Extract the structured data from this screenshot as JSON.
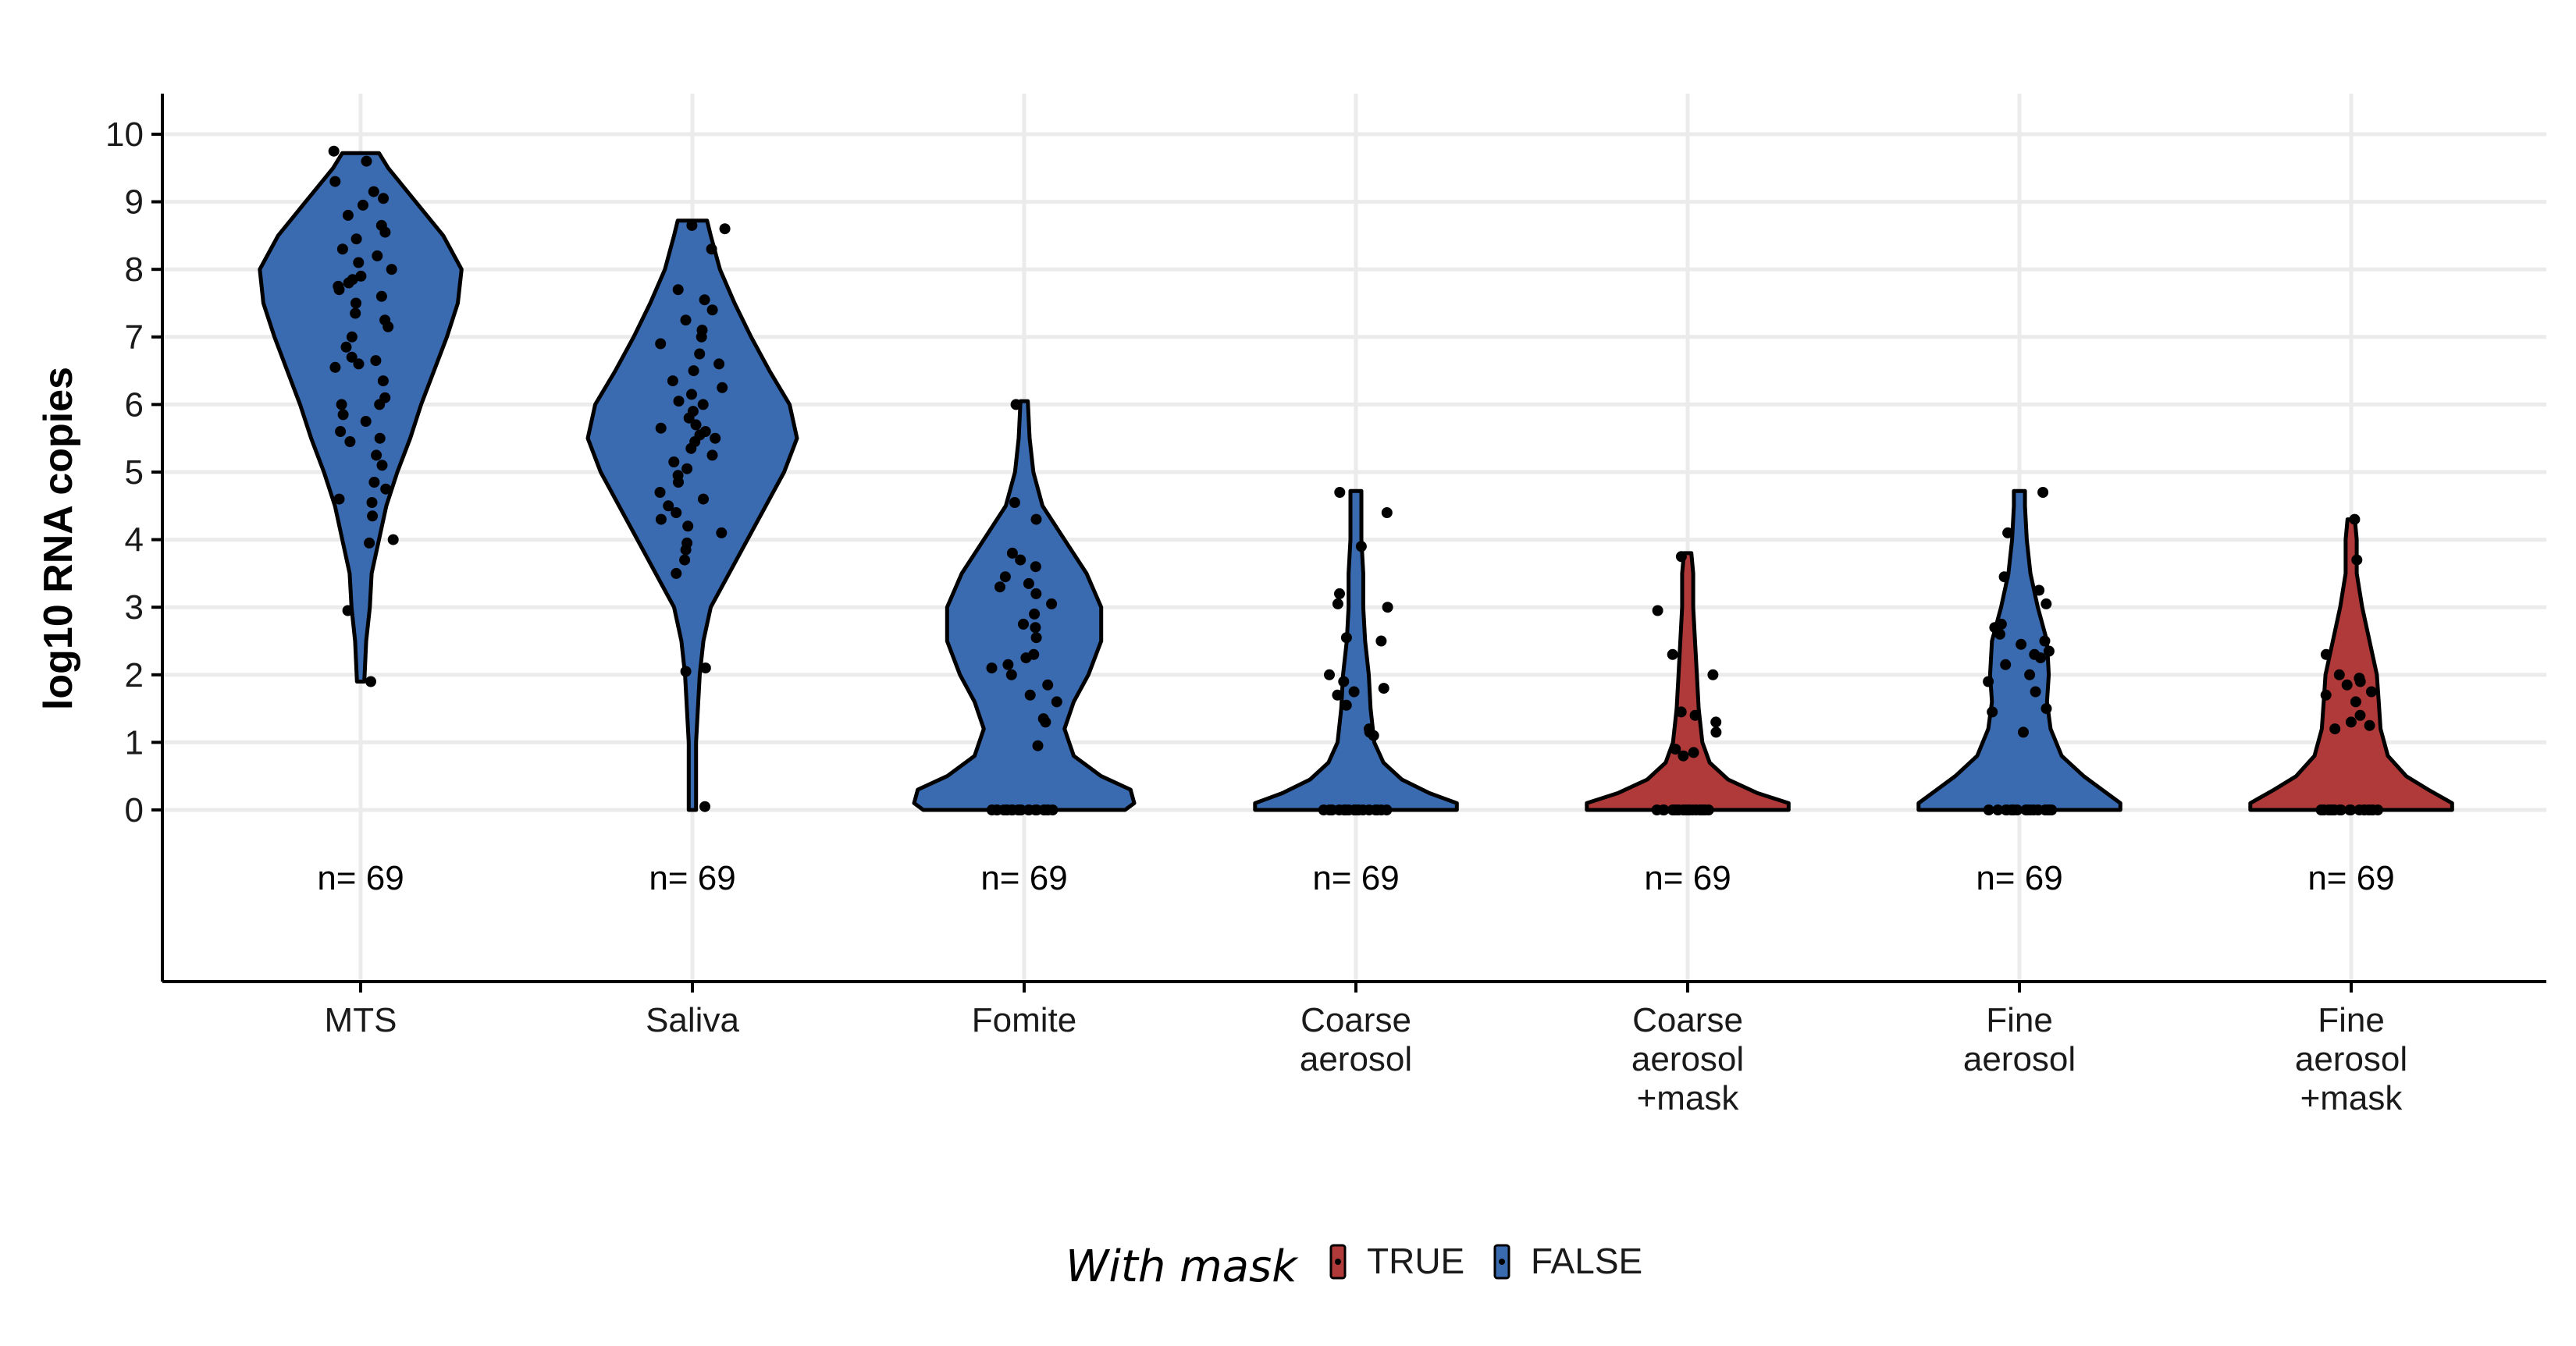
{
  "chart_data": {
    "type": "violin",
    "ylabel": "log10 RNA copies",
    "xlabel": "",
    "ylim": [
      0,
      10
    ],
    "y_ticks": [
      "0",
      "1",
      "2",
      "3",
      "4",
      "5",
      "6",
      "7",
      "8",
      "9",
      "10"
    ],
    "grid": true,
    "legend": {
      "title": "With mask",
      "position": "bottom",
      "entries": [
        {
          "label": "TRUE",
          "color": "#B03A3A"
        },
        {
          "label": "FALSE",
          "color": "#3A6BB0"
        }
      ]
    },
    "categories": [
      {
        "label_lines": [
          "MTS"
        ],
        "with_mask": "FALSE",
        "n_label": "n= 69",
        "profile": [
          [
            1.9,
            0.02
          ],
          [
            2.5,
            0.03
          ],
          [
            3.0,
            0.05
          ],
          [
            3.5,
            0.06
          ],
          [
            4.0,
            0.1
          ],
          [
            4.5,
            0.14
          ],
          [
            5.0,
            0.2
          ],
          [
            5.5,
            0.27
          ],
          [
            6.0,
            0.33
          ],
          [
            6.5,
            0.4
          ],
          [
            7.0,
            0.47
          ],
          [
            7.5,
            0.53
          ],
          [
            8.0,
            0.55
          ],
          [
            8.5,
            0.45
          ],
          [
            9.0,
            0.3
          ],
          [
            9.5,
            0.15
          ],
          [
            9.72,
            0.1
          ]
        ],
        "points": [
          1.9,
          2.95,
          3.95,
          4.0,
          4.35,
          4.55,
          4.6,
          4.75,
          4.85,
          5.1,
          5.25,
          5.45,
          5.5,
          5.6,
          5.75,
          5.85,
          6.0,
          6.0,
          6.1,
          6.35,
          6.55,
          6.6,
          6.65,
          6.7,
          6.85,
          7.0,
          7.15,
          7.25,
          7.35,
          7.5,
          7.6,
          7.7,
          7.75,
          7.8,
          7.85,
          7.9,
          8.0,
          8.1,
          8.2,
          8.3,
          8.45,
          8.55,
          8.65,
          8.8,
          8.95,
          9.05,
          9.15,
          9.3,
          9.6,
          9.75
        ]
      },
      {
        "label_lines": [
          "Saliva"
        ],
        "with_mask": "FALSE",
        "n_label": "n= 69",
        "profile": [
          [
            0.0,
            0.02
          ],
          [
            1.0,
            0.02
          ],
          [
            2.0,
            0.04
          ],
          [
            2.5,
            0.06
          ],
          [
            3.0,
            0.1
          ],
          [
            3.5,
            0.2
          ],
          [
            4.0,
            0.3
          ],
          [
            4.5,
            0.4
          ],
          [
            5.0,
            0.5
          ],
          [
            5.5,
            0.57
          ],
          [
            6.0,
            0.53
          ],
          [
            6.5,
            0.42
          ],
          [
            7.0,
            0.32
          ],
          [
            7.5,
            0.23
          ],
          [
            8.0,
            0.15
          ],
          [
            8.5,
            0.1
          ],
          [
            8.72,
            0.08
          ]
        ],
        "points": [
          0.05,
          2.05,
          2.1,
          3.5,
          3.7,
          3.85,
          3.95,
          4.1,
          4.2,
          4.3,
          4.4,
          4.5,
          4.6,
          4.7,
          4.85,
          4.95,
          5.05,
          5.15,
          5.25,
          5.35,
          5.45,
          5.5,
          5.55,
          5.6,
          5.65,
          5.7,
          5.8,
          5.9,
          6.0,
          6.05,
          6.15,
          6.25,
          6.35,
          6.5,
          6.6,
          6.75,
          6.9,
          7.0,
          7.1,
          7.25,
          7.4,
          7.55,
          7.7,
          8.3,
          8.6,
          8.65
        ]
      },
      {
        "label_lines": [
          "Fomite"
        ],
        "with_mask": "FALSE",
        "n_label": "n= 69",
        "profile": [
          [
            0.0,
            0.55
          ],
          [
            0.1,
            0.6
          ],
          [
            0.3,
            0.58
          ],
          [
            0.5,
            0.42
          ],
          [
            0.8,
            0.27
          ],
          [
            1.2,
            0.22
          ],
          [
            1.6,
            0.27
          ],
          [
            2.0,
            0.35
          ],
          [
            2.5,
            0.42
          ],
          [
            3.0,
            0.42
          ],
          [
            3.5,
            0.34
          ],
          [
            4.0,
            0.22
          ],
          [
            4.5,
            0.1
          ],
          [
            5.0,
            0.05
          ],
          [
            5.5,
            0.03
          ],
          [
            6.05,
            0.02
          ]
        ],
        "points": [
          0,
          0,
          0,
          0,
          0,
          0,
          0,
          0,
          0,
          0,
          0,
          0,
          0,
          0,
          0,
          0,
          0,
          0,
          0,
          0,
          0.95,
          1.3,
          1.35,
          1.6,
          1.7,
          1.85,
          2.0,
          2.1,
          2.15,
          2.25,
          2.3,
          2.55,
          2.7,
          2.75,
          2.9,
          3.05,
          3.2,
          3.3,
          3.35,
          3.45,
          3.6,
          3.7,
          3.8,
          4.3,
          4.55,
          6.0
        ]
      },
      {
        "label_lines": [
          "Coarse",
          "aerosol"
        ],
        "with_mask": "FALSE",
        "n_label": "n= 69",
        "profile": [
          [
            0.0,
            0.55
          ],
          [
            0.1,
            0.55
          ],
          [
            0.25,
            0.4
          ],
          [
            0.45,
            0.25
          ],
          [
            0.7,
            0.15
          ],
          [
            1.0,
            0.1
          ],
          [
            1.5,
            0.08
          ],
          [
            2.0,
            0.07
          ],
          [
            2.5,
            0.05
          ],
          [
            3.0,
            0.04
          ],
          [
            3.5,
            0.04
          ],
          [
            4.0,
            0.03
          ],
          [
            4.5,
            0.03
          ],
          [
            4.72,
            0.03
          ]
        ],
        "points": [
          0,
          0,
          0,
          0,
          0,
          0,
          0,
          0,
          0,
          0,
          0,
          0,
          0,
          0,
          0,
          0,
          0,
          0,
          0,
          0,
          0,
          0,
          1.1,
          1.15,
          1.2,
          1.55,
          1.7,
          1.75,
          1.8,
          1.9,
          2.0,
          2.5,
          2.55,
          3.0,
          3.05,
          3.2,
          3.9,
          4.4,
          4.7
        ]
      },
      {
        "label_lines": [
          "Coarse",
          "aerosol",
          "+mask"
        ],
        "with_mask": "TRUE",
        "n_label": "n= 69",
        "profile": [
          [
            0.0,
            0.55
          ],
          [
            0.1,
            0.55
          ],
          [
            0.25,
            0.38
          ],
          [
            0.45,
            0.22
          ],
          [
            0.7,
            0.12
          ],
          [
            1.0,
            0.08
          ],
          [
            1.5,
            0.06
          ],
          [
            2.0,
            0.05
          ],
          [
            2.5,
            0.04
          ],
          [
            3.0,
            0.03
          ],
          [
            3.5,
            0.03
          ],
          [
            3.8,
            0.02
          ]
        ],
        "points": [
          0,
          0,
          0,
          0,
          0,
          0,
          0,
          0,
          0,
          0,
          0,
          0,
          0,
          0,
          0,
          0,
          0,
          0,
          0,
          0,
          0,
          0,
          0.8,
          0.85,
          0.9,
          1.15,
          1.3,
          1.4,
          1.45,
          2.0,
          2.3,
          2.95,
          3.75
        ]
      },
      {
        "label_lines": [
          "Fine",
          "aerosol"
        ],
        "with_mask": "FALSE",
        "n_label": "n= 69",
        "profile": [
          [
            0.0,
            0.55
          ],
          [
            0.1,
            0.55
          ],
          [
            0.3,
            0.45
          ],
          [
            0.5,
            0.35
          ],
          [
            0.8,
            0.23
          ],
          [
            1.2,
            0.17
          ],
          [
            1.6,
            0.15
          ],
          [
            2.0,
            0.16
          ],
          [
            2.5,
            0.15
          ],
          [
            3.0,
            0.1
          ],
          [
            3.5,
            0.06
          ],
          [
            4.0,
            0.04
          ],
          [
            4.5,
            0.03
          ],
          [
            4.72,
            0.03
          ]
        ],
        "points": [
          0,
          0,
          0,
          0,
          0,
          0,
          0,
          0,
          0,
          0,
          0,
          0,
          0,
          0,
          0,
          0,
          0,
          0,
          0,
          0,
          1.15,
          1.45,
          1.5,
          1.75,
          1.9,
          2.0,
          2.15,
          2.25,
          2.3,
          2.35,
          2.45,
          2.5,
          2.6,
          2.7,
          2.75,
          3.05,
          3.25,
          3.45,
          4.1,
          4.7
        ]
      },
      {
        "label_lines": [
          "Fine",
          "aerosol",
          "+mask"
        ],
        "with_mask": "TRUE",
        "n_label": "n= 69",
        "profile": [
          [
            0.0,
            0.55
          ],
          [
            0.1,
            0.55
          ],
          [
            0.3,
            0.42
          ],
          [
            0.5,
            0.3
          ],
          [
            0.8,
            0.2
          ],
          [
            1.2,
            0.16
          ],
          [
            1.6,
            0.15
          ],
          [
            2.0,
            0.14
          ],
          [
            2.5,
            0.1
          ],
          [
            3.0,
            0.06
          ],
          [
            3.5,
            0.03
          ],
          [
            4.0,
            0.03
          ],
          [
            4.3,
            0.02
          ]
        ],
        "points": [
          0,
          0,
          0,
          0,
          0,
          0,
          0,
          0,
          0,
          0,
          0,
          0,
          0,
          0,
          0,
          0,
          0,
          0,
          0,
          0,
          1.2,
          1.25,
          1.3,
          1.4,
          1.6,
          1.7,
          1.75,
          1.85,
          1.9,
          1.95,
          2.0,
          2.3,
          3.7,
          4.3
        ]
      }
    ]
  }
}
